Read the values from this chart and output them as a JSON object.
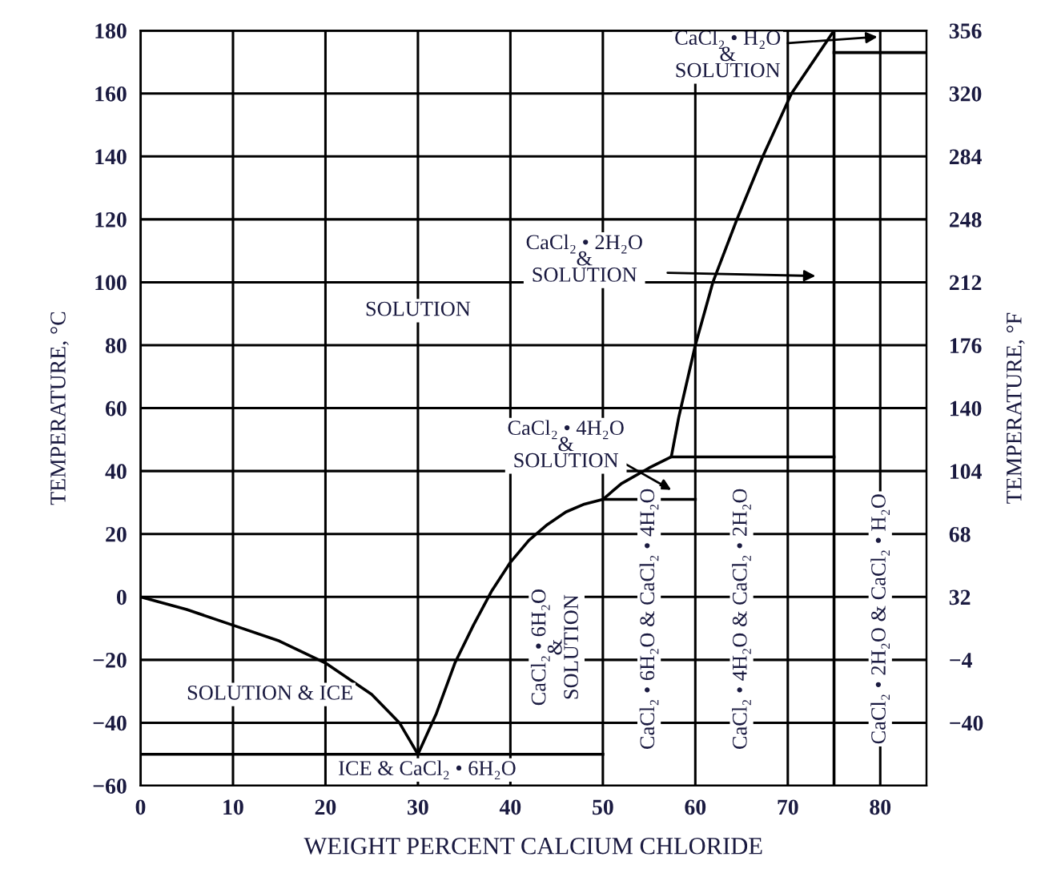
{
  "chart_data": {
    "type": "line",
    "xlabel": "WEIGHT PERCENT CALCIUM CHLORIDE",
    "ylabel": "TEMPERATURE, °C",
    "y2label": "TEMPERATURE, °F",
    "xlim": [
      0,
      85
    ],
    "xticks": [
      0,
      10,
      20,
      30,
      40,
      50,
      60,
      70,
      80
    ],
    "ylim": [
      -60,
      180
    ],
    "yticks": [
      -60,
      -40,
      -20,
      0,
      20,
      40,
      60,
      80,
      100,
      120,
      140,
      160,
      180
    ],
    "y2lim": [
      -76,
      356
    ],
    "y2ticks": [
      -40,
      -4,
      32,
      68,
      104,
      140,
      176,
      212,
      248,
      284,
      320,
      356
    ],
    "grid": true,
    "marker": "none",
    "line_style": "solid",
    "series": [
      {
        "color": "#000000",
        "x": [
          0,
          5,
          10,
          15,
          20,
          25,
          28,
          30,
          32,
          34,
          36,
          38,
          40,
          42,
          44,
          46,
          48,
          50,
          60
        ],
        "values": [
          0,
          -4,
          -9,
          -14,
          -21,
          -31,
          -40,
          -50,
          -37,
          -21,
          -9,
          2,
          11,
          18,
          23,
          27,
          29.5,
          31,
          31
        ]
      },
      {
        "color": "#000000",
        "x": [
          50,
          52,
          55,
          57.4,
          58.2,
          60,
          61.9,
          64.5,
          67.3,
          70.4,
          75
        ],
        "values": [
          31,
          36,
          41,
          44.5,
          57,
          80,
          100,
          120,
          140,
          160,
          180
        ]
      },
      {
        "color": "#000000",
        "x": [
          0,
          50
        ],
        "values": [
          -50,
          -50
        ]
      },
      {
        "color": "#000000",
        "x": [
          57.4,
          75
        ],
        "values": [
          44.5,
          44.5
        ]
      },
      {
        "color": "#000000",
        "x": [
          75,
          85
        ],
        "values": [
          173,
          173
        ]
      }
    ],
    "ref_lines": [
      {
        "axis": "x",
        "value": 75,
        "color": "#000000"
      }
    ],
    "annotations": [
      "CaCl₂ • H₂O\n&\nSOLUTION",
      "CaCl₂ • 2H₂O\n&\nSOLUTION",
      "CaCl₂ • 4H₂O\n&\nSOLUTION",
      "SOLUTION",
      "SOLUTION & ICE",
      "ICE & CaCl₂ • 6H₂O",
      "CaCl₂ • 6H₂O\n&\nSOLUTION",
      "CaCl₂ • 6H₂O & CaCl₂ • 4H₂O",
      "CaCl₂ • 4H₂O & CaCl₂ • 2H₂O",
      "CaCl₂ • 2H₂O & CaCl₂ • H₂O"
    ]
  }
}
